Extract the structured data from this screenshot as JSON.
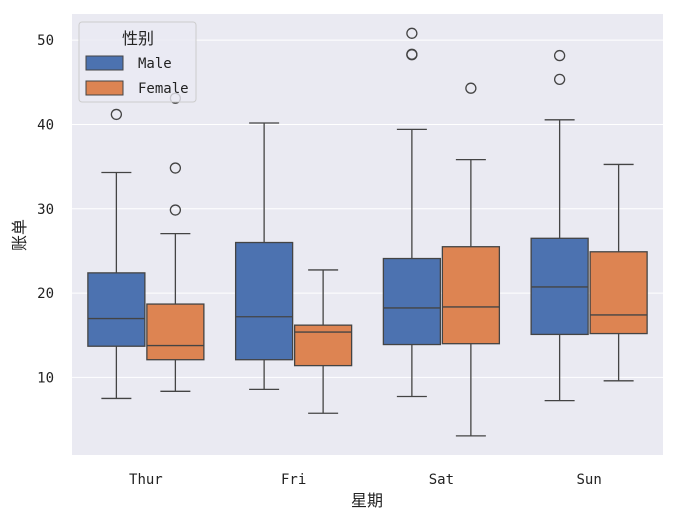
{
  "chart_data": {
    "type": "box",
    "xlabel": "星期",
    "ylabel": "账单",
    "categories": [
      "Thur",
      "Fri",
      "Sat",
      "Sun"
    ],
    "yticks": [
      10,
      20,
      30,
      40,
      50
    ],
    "ylim": [
      0.8,
      53.1
    ],
    "grid": true,
    "legend": {
      "title": "性别",
      "position": "top-left"
    },
    "series": [
      {
        "name": "Male",
        "color": "#4c72b0",
        "boxes": [
          {
            "min": 7.51,
            "q1": 13.7,
            "median": 16.98,
            "q3": 22.4,
            "max": 34.3,
            "outliers": [
              41.19
            ]
          },
          {
            "min": 8.58,
            "q1": 12.1,
            "median": 17.2,
            "q3": 26.0,
            "max": 40.17,
            "outliers": []
          },
          {
            "min": 7.74,
            "q1": 13.9,
            "median": 18.24,
            "q3": 24.1,
            "max": 39.42,
            "outliers": [
              48.27,
              48.33,
              50.81
            ]
          },
          {
            "min": 7.25,
            "q1": 15.1,
            "median": 20.73,
            "q3": 26.5,
            "max": 40.55,
            "outliers": [
              45.35,
              48.17
            ]
          }
        ]
      },
      {
        "name": "Female",
        "color": "#dd8452",
        "boxes": [
          {
            "min": 8.35,
            "q1": 12.1,
            "median": 13.78,
            "q3": 18.7,
            "max": 27.05,
            "outliers": [
              29.85,
              34.83,
              43.11
            ]
          },
          {
            "min": 5.75,
            "q1": 11.4,
            "median": 15.38,
            "q3": 16.2,
            "max": 22.75,
            "outliers": []
          },
          {
            "min": 3.07,
            "q1": 14.0,
            "median": 18.36,
            "q3": 25.5,
            "max": 35.83,
            "outliers": [
              44.3
            ]
          },
          {
            "min": 9.6,
            "q1": 15.2,
            "median": 17.41,
            "q3": 24.9,
            "max": 35.26,
            "outliers": []
          }
        ]
      }
    ]
  }
}
